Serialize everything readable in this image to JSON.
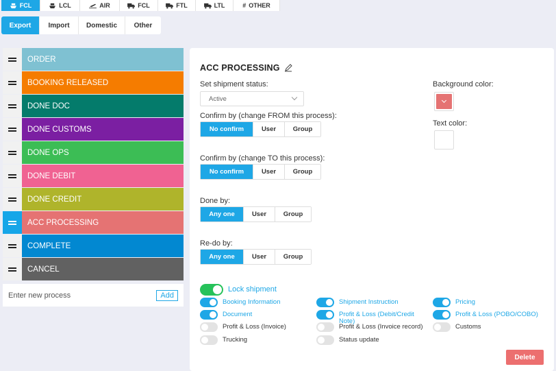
{
  "mode_tabs": [
    {
      "label": "FCL",
      "icon": "ship-icon",
      "active": true
    },
    {
      "label": "LCL",
      "icon": "ship-icon",
      "active": false
    },
    {
      "label": "AIR",
      "icon": "plane-icon",
      "active": false
    },
    {
      "label": "FCL",
      "icon": "truck-icon",
      "active": false
    },
    {
      "label": "FTL",
      "icon": "truck-icon",
      "active": false
    },
    {
      "label": "LTL",
      "icon": "truck-icon",
      "active": false
    },
    {
      "label": "OTHER",
      "icon": "hash-icon",
      "active": false
    }
  ],
  "direction_tabs": [
    {
      "label": "Export",
      "active": true
    },
    {
      "label": "Import",
      "active": false
    },
    {
      "label": "Domestic",
      "active": false
    },
    {
      "label": "Other",
      "active": false
    }
  ],
  "processes": [
    {
      "label": "ORDER",
      "color": "#7fc1d2"
    },
    {
      "label": "BOOKING RELEASED",
      "color": "#f57c00"
    },
    {
      "label": "DONE DOC",
      "color": "#047b6b"
    },
    {
      "label": "DONE CUSTOMS",
      "color": "#7b1fa2"
    },
    {
      "label": "DONE OPS",
      "color": "#3cbd55"
    },
    {
      "label": "DONE DEBIT",
      "color": "#f06292"
    },
    {
      "label": "DONE CREDIT",
      "color": "#afb42b"
    },
    {
      "label": "ACC PROCESSING",
      "color": "#e57373",
      "active": true
    },
    {
      "label": "COMPLETE",
      "color": "#0288d1"
    },
    {
      "label": "CANCEL",
      "color": "#616161"
    }
  ],
  "new_process": {
    "placeholder": "Enter new process",
    "add_label": "Add"
  },
  "detail": {
    "title": "ACC PROCESSING",
    "status_label": "Set shipment status:",
    "status_value": "Active",
    "confirm_from_label": "Confirm by (change FROM this process):",
    "confirm_from_options": [
      "No confirm",
      "User",
      "Group"
    ],
    "confirm_to_label": "Confirm by (change TO this process):",
    "confirm_to_options": [
      "No confirm",
      "User",
      "Group"
    ],
    "done_by_label": "Done by:",
    "done_by_options": [
      "Any one",
      "User",
      "Group"
    ],
    "redo_by_label": "Re-do by:",
    "redo_by_options": [
      "Any one",
      "User",
      "Group"
    ],
    "bg_color_label": "Background color:",
    "bg_color": "#e57373",
    "text_color_label": "Text color:",
    "text_color": "#ffffff",
    "lock_label": "Lock shipment",
    "toggles": [
      {
        "label": "Booking Information",
        "on": true
      },
      {
        "label": "Shipment Instruction",
        "on": true
      },
      {
        "label": "Pricing",
        "on": true
      },
      {
        "label": "Document",
        "on": true
      },
      {
        "label": "Profit & Loss (Debit/Credit Note)",
        "on": true
      },
      {
        "label": "Profit & Loss (POBO/COBO)",
        "on": true
      },
      {
        "label": "Profit & Loss (Invoice)",
        "on": false
      },
      {
        "label": "Profit & Loss (Invoice record)",
        "on": false
      },
      {
        "label": "Customs",
        "on": false
      },
      {
        "label": "Trucking",
        "on": false
      },
      {
        "label": "Status update",
        "on": false
      }
    ],
    "delete_label": "Delete"
  }
}
